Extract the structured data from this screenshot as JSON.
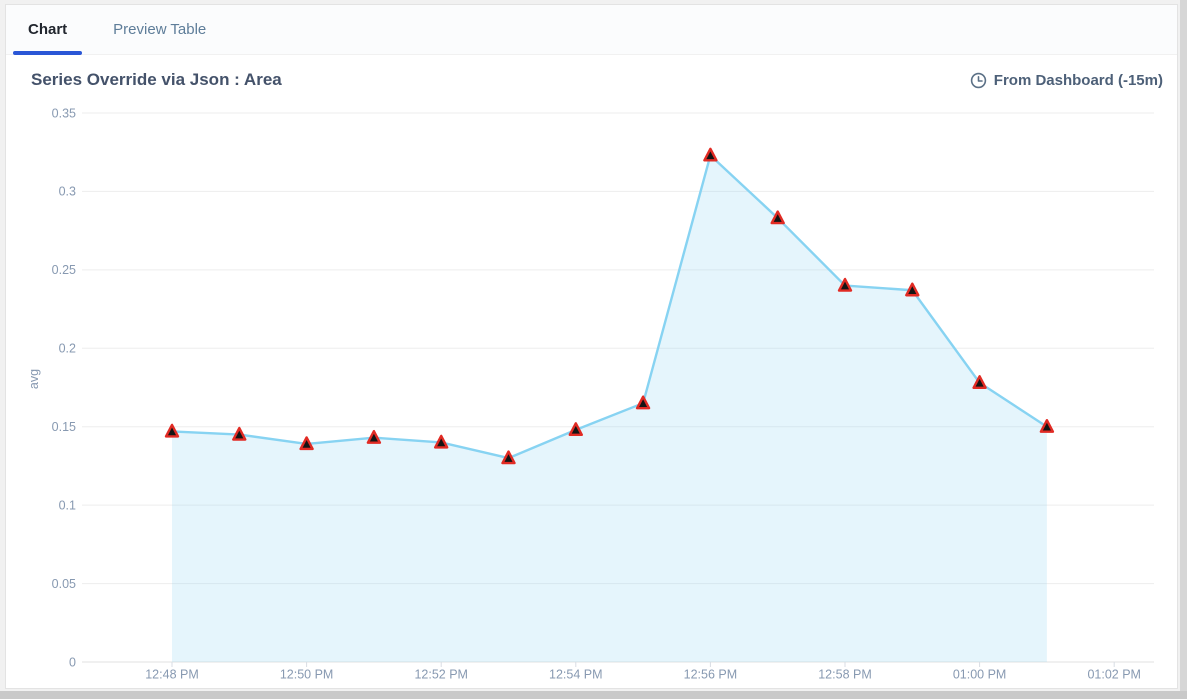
{
  "tabs": [
    {
      "label": "Chart",
      "active": true
    },
    {
      "label": "Preview Table",
      "active": false
    }
  ],
  "panel": {
    "title": "Series Override via Json : Area",
    "time_range_label": "From Dashboard (-15m)",
    "time_range_icon": "clock-icon"
  },
  "chart_data": {
    "type": "area",
    "title": "Series Override via Json : Area",
    "xlabel": "",
    "ylabel": "avg",
    "ylim": [
      0,
      0.35
    ],
    "y_ticks": [
      0,
      0.05,
      0.1,
      0.15,
      0.2,
      0.25,
      0.3,
      0.35
    ],
    "x_tick_labels": [
      "12:48 PM",
      "12:50 PM",
      "12:52 PM",
      "12:54 PM",
      "12:56 PM",
      "12:58 PM",
      "01:00 PM",
      "01:02 PM"
    ],
    "grid": true,
    "legend_position": "none",
    "series": [
      {
        "name": "avg",
        "marker": "triangle",
        "x": [
          "12:48 PM",
          "12:49 PM",
          "12:50 PM",
          "12:51 PM",
          "12:52 PM",
          "12:53 PM",
          "12:54 PM",
          "12:55 PM",
          "12:56 PM",
          "12:57 PM",
          "12:58 PM",
          "12:59 PM",
          "01:00 PM",
          "01:01 PM"
        ],
        "values": [
          0.147,
          0.145,
          0.139,
          0.143,
          0.14,
          0.13,
          0.148,
          0.165,
          0.323,
          0.283,
          0.24,
          0.237,
          0.178,
          0.15
        ]
      }
    ],
    "colors": {
      "line": "#87d3f2",
      "fill": "rgba(135, 211, 242, 0.22)",
      "marker_border": "#e12b24",
      "marker_fill": "#141414",
      "gridline": "#ededed",
      "axis_line": "#e2e2e2",
      "tick_label": "#8799b1",
      "accent_tab": "#2a56d6"
    }
  }
}
